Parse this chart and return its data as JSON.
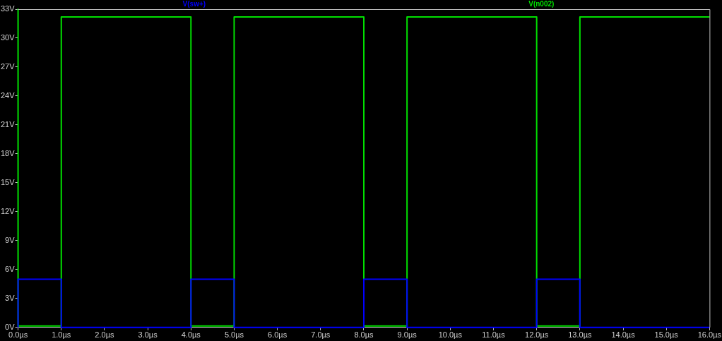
{
  "chart_data": {
    "type": "line",
    "legend": "top",
    "grid": false,
    "marker": "none",
    "line_style": "solid",
    "xlim": [
      0,
      16
    ],
    "xticks": [
      {
        "value": 0,
        "label": "0.0µs"
      },
      {
        "value": 1,
        "label": "1.0µs"
      },
      {
        "value": 2,
        "label": "2.0µs"
      },
      {
        "value": 3,
        "label": "3.0µs"
      },
      {
        "value": 4,
        "label": "4.0µs"
      },
      {
        "value": 5,
        "label": "5.0µs"
      },
      {
        "value": 6,
        "label": "6.0µs"
      },
      {
        "value": 7,
        "label": "7.0µs"
      },
      {
        "value": 8,
        "label": "8.0µs"
      },
      {
        "value": 9,
        "label": "9.0µs"
      },
      {
        "value": 10,
        "label": "10.0µs"
      },
      {
        "value": 11,
        "label": "11.0µs"
      },
      {
        "value": 12,
        "label": "12.0µs"
      },
      {
        "value": 13,
        "label": "13.0µs"
      },
      {
        "value": 14,
        "label": "14.0µs"
      },
      {
        "value": 15,
        "label": "15.0µs"
      },
      {
        "value": 16,
        "label": "16.0µs"
      }
    ],
    "ylim": [
      0,
      33
    ],
    "yticks": [
      {
        "value": 0,
        "label": "0V"
      },
      {
        "value": 3,
        "label": "3V"
      },
      {
        "value": 6,
        "label": "6V"
      },
      {
        "value": 9,
        "label": "9V"
      },
      {
        "value": 12,
        "label": "12V"
      },
      {
        "value": 15,
        "label": "15V"
      },
      {
        "value": 18,
        "label": "18V"
      },
      {
        "value": 21,
        "label": "21V"
      },
      {
        "value": 24,
        "label": "24V"
      },
      {
        "value": 27,
        "label": "27V"
      },
      {
        "value": 30,
        "label": "30V"
      },
      {
        "value": 33,
        "label": "33V"
      }
    ],
    "series": [
      {
        "name": "V(sw+)",
        "color": "#0000ff",
        "x": [
          0,
          0,
          1,
          1,
          4,
          4,
          5,
          5,
          8,
          8,
          9,
          9,
          12,
          12,
          13,
          13,
          16
        ],
        "values": [
          0,
          5,
          5,
          0,
          0,
          5,
          5,
          0,
          0,
          5,
          5,
          0,
          0,
          5,
          5,
          0,
          0
        ]
      },
      {
        "name": "V(n002)",
        "color": "#00e000",
        "x": [
          0,
          0,
          1,
          1,
          4,
          4,
          5,
          5,
          8,
          8,
          9,
          9,
          12,
          12,
          13,
          13,
          16
        ],
        "values": [
          33,
          0.15,
          0.15,
          32.2,
          32.2,
          0.15,
          0.15,
          32.2,
          32.2,
          0.15,
          0.15,
          32.2,
          32.2,
          0.15,
          0.15,
          32.2,
          32.2
        ]
      }
    ]
  }
}
